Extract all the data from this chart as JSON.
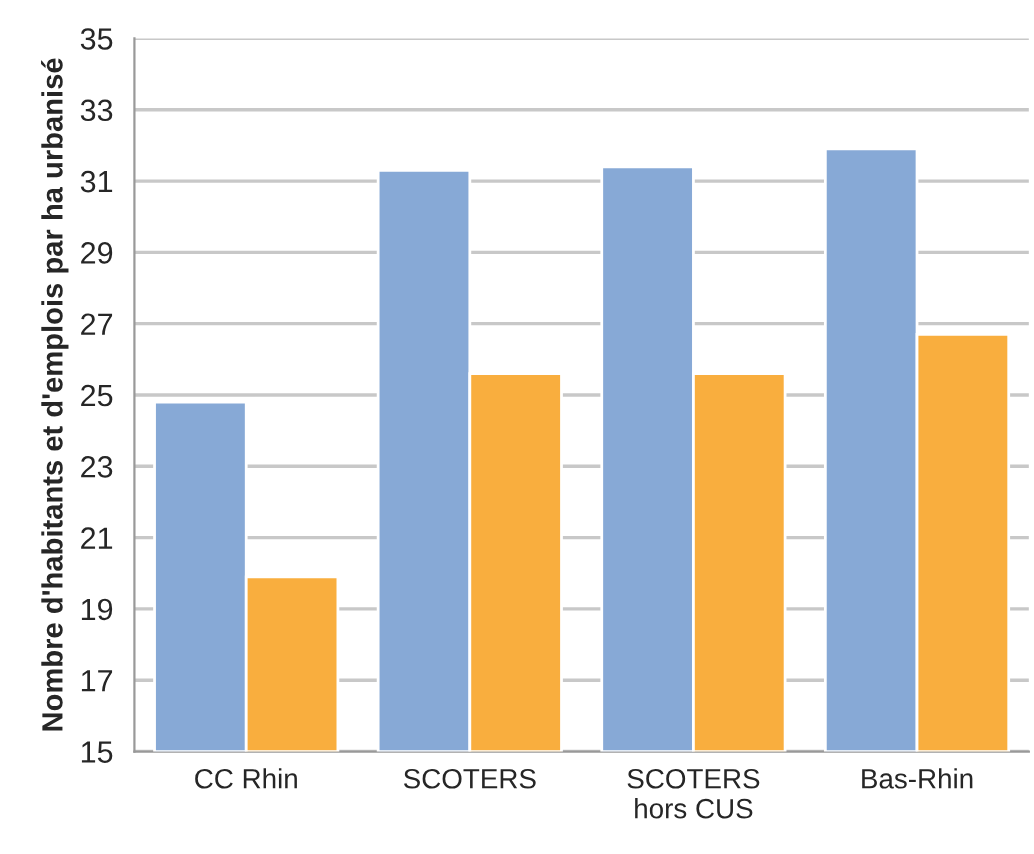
{
  "chart_data": {
    "type": "bar",
    "ylabel": "Nombre d'habitants et d'emplois par ha urbanisé",
    "categories": [
      "CC Rhin",
      "SCOTERS",
      "SCOTERS\nhors CUS",
      "Bas-Rhin"
    ],
    "series": [
      {
        "color": "#87a9d6",
        "values": [
          24.8,
          31.3,
          31.4,
          31.9
        ]
      },
      {
        "color": "#f9ae3e",
        "values": [
          19.9,
          25.6,
          25.6,
          26.7
        ]
      }
    ],
    "ylim": [
      15,
      35
    ],
    "yticks": [
      15,
      17,
      19,
      21,
      23,
      25,
      27,
      29,
      31,
      33,
      35
    ],
    "grid": "y",
    "legend": false
  }
}
